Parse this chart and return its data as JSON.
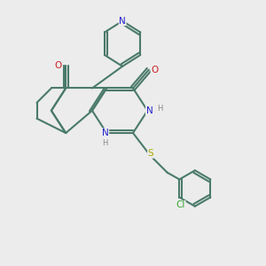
{
  "bg_color": "#ececec",
  "bond_color": "#4a7a6a",
  "bond_lw": 1.5,
  "atom_colors": {
    "N": "#2020cc",
    "O": "#cc2020",
    "S": "#aaaa00",
    "Cl": "#33aa33",
    "C": "#000000",
    "H_label": "#888888"
  },
  "font_size": 7.5,
  "fig_size": [
    3.0,
    3.0
  ],
  "dpi": 100
}
